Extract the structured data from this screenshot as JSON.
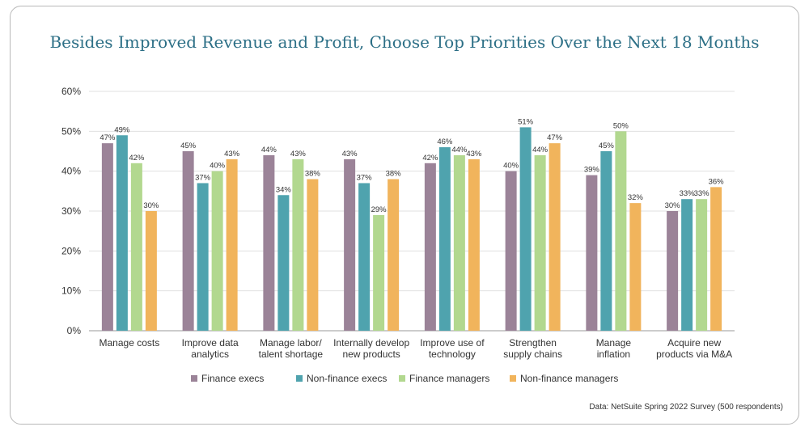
{
  "chart_data": {
    "type": "bar",
    "title": "Besides Improved Revenue and Profit, Choose Top Priorities Over the Next 18 Months",
    "categories": [
      [
        "Manage costs"
      ],
      [
        "Improve data",
        "analytics"
      ],
      [
        "Manage labor/",
        "talent shortage"
      ],
      [
        "Internally develop",
        "new products"
      ],
      [
        "Improve use of",
        "technology"
      ],
      [
        "Strengthen",
        "supply chains"
      ],
      [
        "Manage",
        "inflation"
      ],
      [
        "Acquire new",
        "products via M&A"
      ]
    ],
    "series": [
      {
        "name": "Finance execs",
        "color": "#9b8398",
        "values": [
          47,
          45,
          44,
          43,
          42,
          40,
          39,
          30
        ]
      },
      {
        "name": "Non-finance execs",
        "color": "#4fa3ae",
        "values": [
          49,
          37,
          34,
          37,
          46,
          51,
          45,
          33
        ]
      },
      {
        "name": "Finance managers",
        "color": "#b2d88f",
        "values": [
          42,
          40,
          43,
          29,
          44,
          44,
          50,
          33
        ]
      },
      {
        "name": "Non-finance managers",
        "color": "#f1b45c",
        "values": [
          30,
          43,
          38,
          38,
          43,
          47,
          32,
          36
        ]
      }
    ],
    "ylim": [
      0,
      60
    ],
    "yticks": [
      0,
      10,
      20,
      30,
      40,
      50,
      60
    ],
    "value_suffix": "%",
    "legend_position": "bottom",
    "source": "Data: NetSuite Spring 2022 Survey (500 respondents)"
  }
}
